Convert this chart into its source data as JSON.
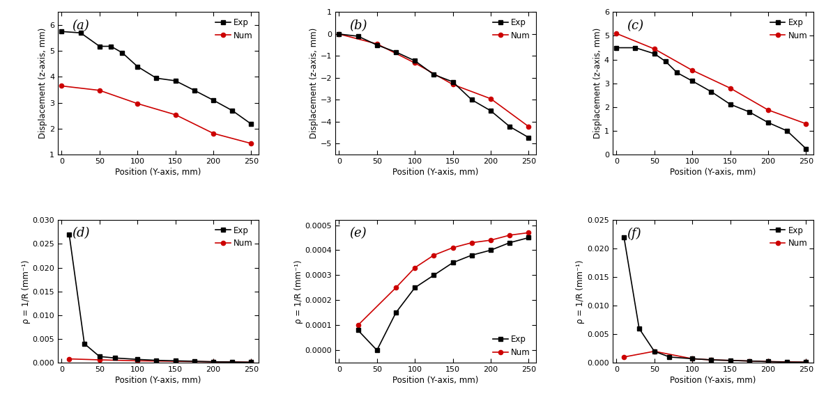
{
  "panel_a": {
    "exp_x": [
      0,
      25,
      50,
      65,
      80,
      100,
      125,
      150,
      175,
      200,
      225,
      250
    ],
    "exp_y": [
      5.75,
      5.7,
      5.18,
      5.18,
      4.93,
      4.4,
      3.95,
      3.85,
      3.48,
      3.1,
      2.7,
      2.18
    ],
    "num_x": [
      0,
      50,
      100,
      150,
      200,
      250
    ],
    "num_y": [
      3.65,
      3.48,
      2.97,
      2.54,
      1.82,
      1.43
    ],
    "ylabel": "Displacement (z-axis, mm)",
    "xlabel": "Position (Y-axis, mm)",
    "ylim": [
      1,
      6.5
    ],
    "xlim": [
      -5,
      260
    ],
    "yticks": [
      1,
      2,
      3,
      4,
      5,
      6
    ],
    "xticks": [
      0,
      50,
      100,
      150,
      200,
      250
    ],
    "label": "(a)"
  },
  "panel_b": {
    "exp_x": [
      0,
      25,
      50,
      75,
      100,
      125,
      150,
      175,
      200,
      225,
      250
    ],
    "exp_y": [
      0.0,
      -0.1,
      -0.5,
      -0.82,
      -1.22,
      -1.85,
      -2.18,
      -3.0,
      -3.5,
      -4.22,
      -4.72
    ],
    "num_x": [
      0,
      50,
      100,
      150,
      200,
      250
    ],
    "num_y": [
      0.0,
      -0.45,
      -1.32,
      -2.3,
      -2.95,
      -4.22
    ],
    "ylabel": "Displacement (z-axis, mm)",
    "xlabel": "Position (Y-axis, mm)",
    "ylim": [
      -5.5,
      1.0
    ],
    "xlim": [
      -5,
      260
    ],
    "yticks": [
      -5,
      -4,
      -3,
      -2,
      -1,
      0,
      1
    ],
    "xticks": [
      0,
      50,
      100,
      150,
      200,
      250
    ],
    "label": "(b)"
  },
  "panel_c": {
    "exp_x": [
      0,
      25,
      50,
      65,
      80,
      100,
      125,
      150,
      175,
      200,
      225,
      250
    ],
    "exp_y": [
      4.5,
      4.5,
      4.25,
      3.92,
      3.45,
      3.1,
      2.65,
      2.12,
      1.8,
      1.35,
      1.0,
      0.25
    ],
    "num_x": [
      0,
      50,
      100,
      150,
      200,
      250
    ],
    "num_y": [
      5.1,
      4.45,
      3.55,
      2.8,
      1.88,
      1.3
    ],
    "ylabel": "Displacement (z-axis, mm)",
    "xlabel": "Position (Y-axis, mm)",
    "ylim": [
      0,
      6
    ],
    "xlim": [
      -5,
      260
    ],
    "yticks": [
      0,
      1,
      2,
      3,
      4,
      5,
      6
    ],
    "xticks": [
      0,
      50,
      100,
      150,
      200,
      250
    ],
    "label": "(c)"
  },
  "panel_d": {
    "exp_x": [
      10,
      30,
      50,
      70,
      100,
      125,
      150,
      175,
      200,
      225,
      250
    ],
    "exp_y": [
      0.027,
      0.004,
      0.0013,
      0.001,
      0.0007,
      0.0005,
      0.0004,
      0.0003,
      0.0002,
      0.00015,
      0.0001
    ],
    "num_x": [
      10,
      50,
      100,
      150,
      200,
      250
    ],
    "num_y": [
      0.0008,
      0.0006,
      0.0004,
      0.0003,
      0.0002,
      0.0001
    ],
    "ylabel": "ρ = 1/R (mm⁻¹)",
    "xlabel": "Position (Y-axis, mm)",
    "ylim": [
      0,
      0.03
    ],
    "xlim": [
      -5,
      260
    ],
    "yticks": [
      0.0,
      0.005,
      0.01,
      0.015,
      0.02,
      0.025,
      0.03
    ],
    "xticks": [
      0,
      50,
      100,
      150,
      200,
      250
    ],
    "label": "(d)"
  },
  "panel_e": {
    "exp_x": [
      25,
      50,
      75,
      100,
      125,
      150,
      175,
      200,
      225,
      250
    ],
    "exp_y": [
      8e-05,
      0.0,
      0.00015,
      0.00025,
      0.0003,
      0.00035,
      0.00038,
      0.0004,
      0.00043,
      0.00045
    ],
    "num_x": [
      25,
      75,
      100,
      125,
      150,
      175,
      200,
      225,
      250
    ],
    "num_y": [
      0.0001,
      0.00025,
      0.00033,
      0.00038,
      0.00041,
      0.00043,
      0.00044,
      0.00046,
      0.00047
    ],
    "ylabel": "ρ = 1/R (mm⁻¹)",
    "xlabel": "Position (Y-axis, mm)",
    "ylim": [
      -5e-05,
      0.00052
    ],
    "xlim": [
      -5,
      260
    ],
    "yticks": [
      0.0,
      0.0001,
      0.0002,
      0.0003,
      0.0004,
      0.0005
    ],
    "xticks": [
      0,
      50,
      100,
      150,
      200,
      250
    ],
    "label": "(e)"
  },
  "panel_f": {
    "exp_x": [
      10,
      30,
      50,
      70,
      100,
      125,
      150,
      175,
      200,
      225,
      250
    ],
    "exp_y": [
      0.022,
      0.006,
      0.002,
      0.001,
      0.0007,
      0.0005,
      0.0004,
      0.0003,
      0.0002,
      0.0001,
      0.0001
    ],
    "num_x": [
      10,
      50,
      100,
      125,
      175,
      200,
      250
    ],
    "num_y": [
      0.001,
      0.002,
      0.0007,
      0.0005,
      0.0003,
      0.0002,
      0.0001
    ],
    "ylabel": "ρ = 1/R (mm⁻¹)",
    "xlabel": "Position (Y-axis, mm)",
    "ylim": [
      0,
      0.025
    ],
    "xlim": [
      -5,
      260
    ],
    "yticks": [
      0.0,
      0.005,
      0.01,
      0.015,
      0.02,
      0.025
    ],
    "xticks": [
      0,
      50,
      100,
      150,
      200,
      250
    ],
    "label": "(f)"
  },
  "exp_color": "#000000",
  "num_color": "#cc0000",
  "marker_exp": "s",
  "marker_num": "o",
  "linewidth": 1.2,
  "markersize": 4.5,
  "legend_fontsize": 8.5,
  "label_fontsize": 8.5,
  "tick_fontsize": 8
}
